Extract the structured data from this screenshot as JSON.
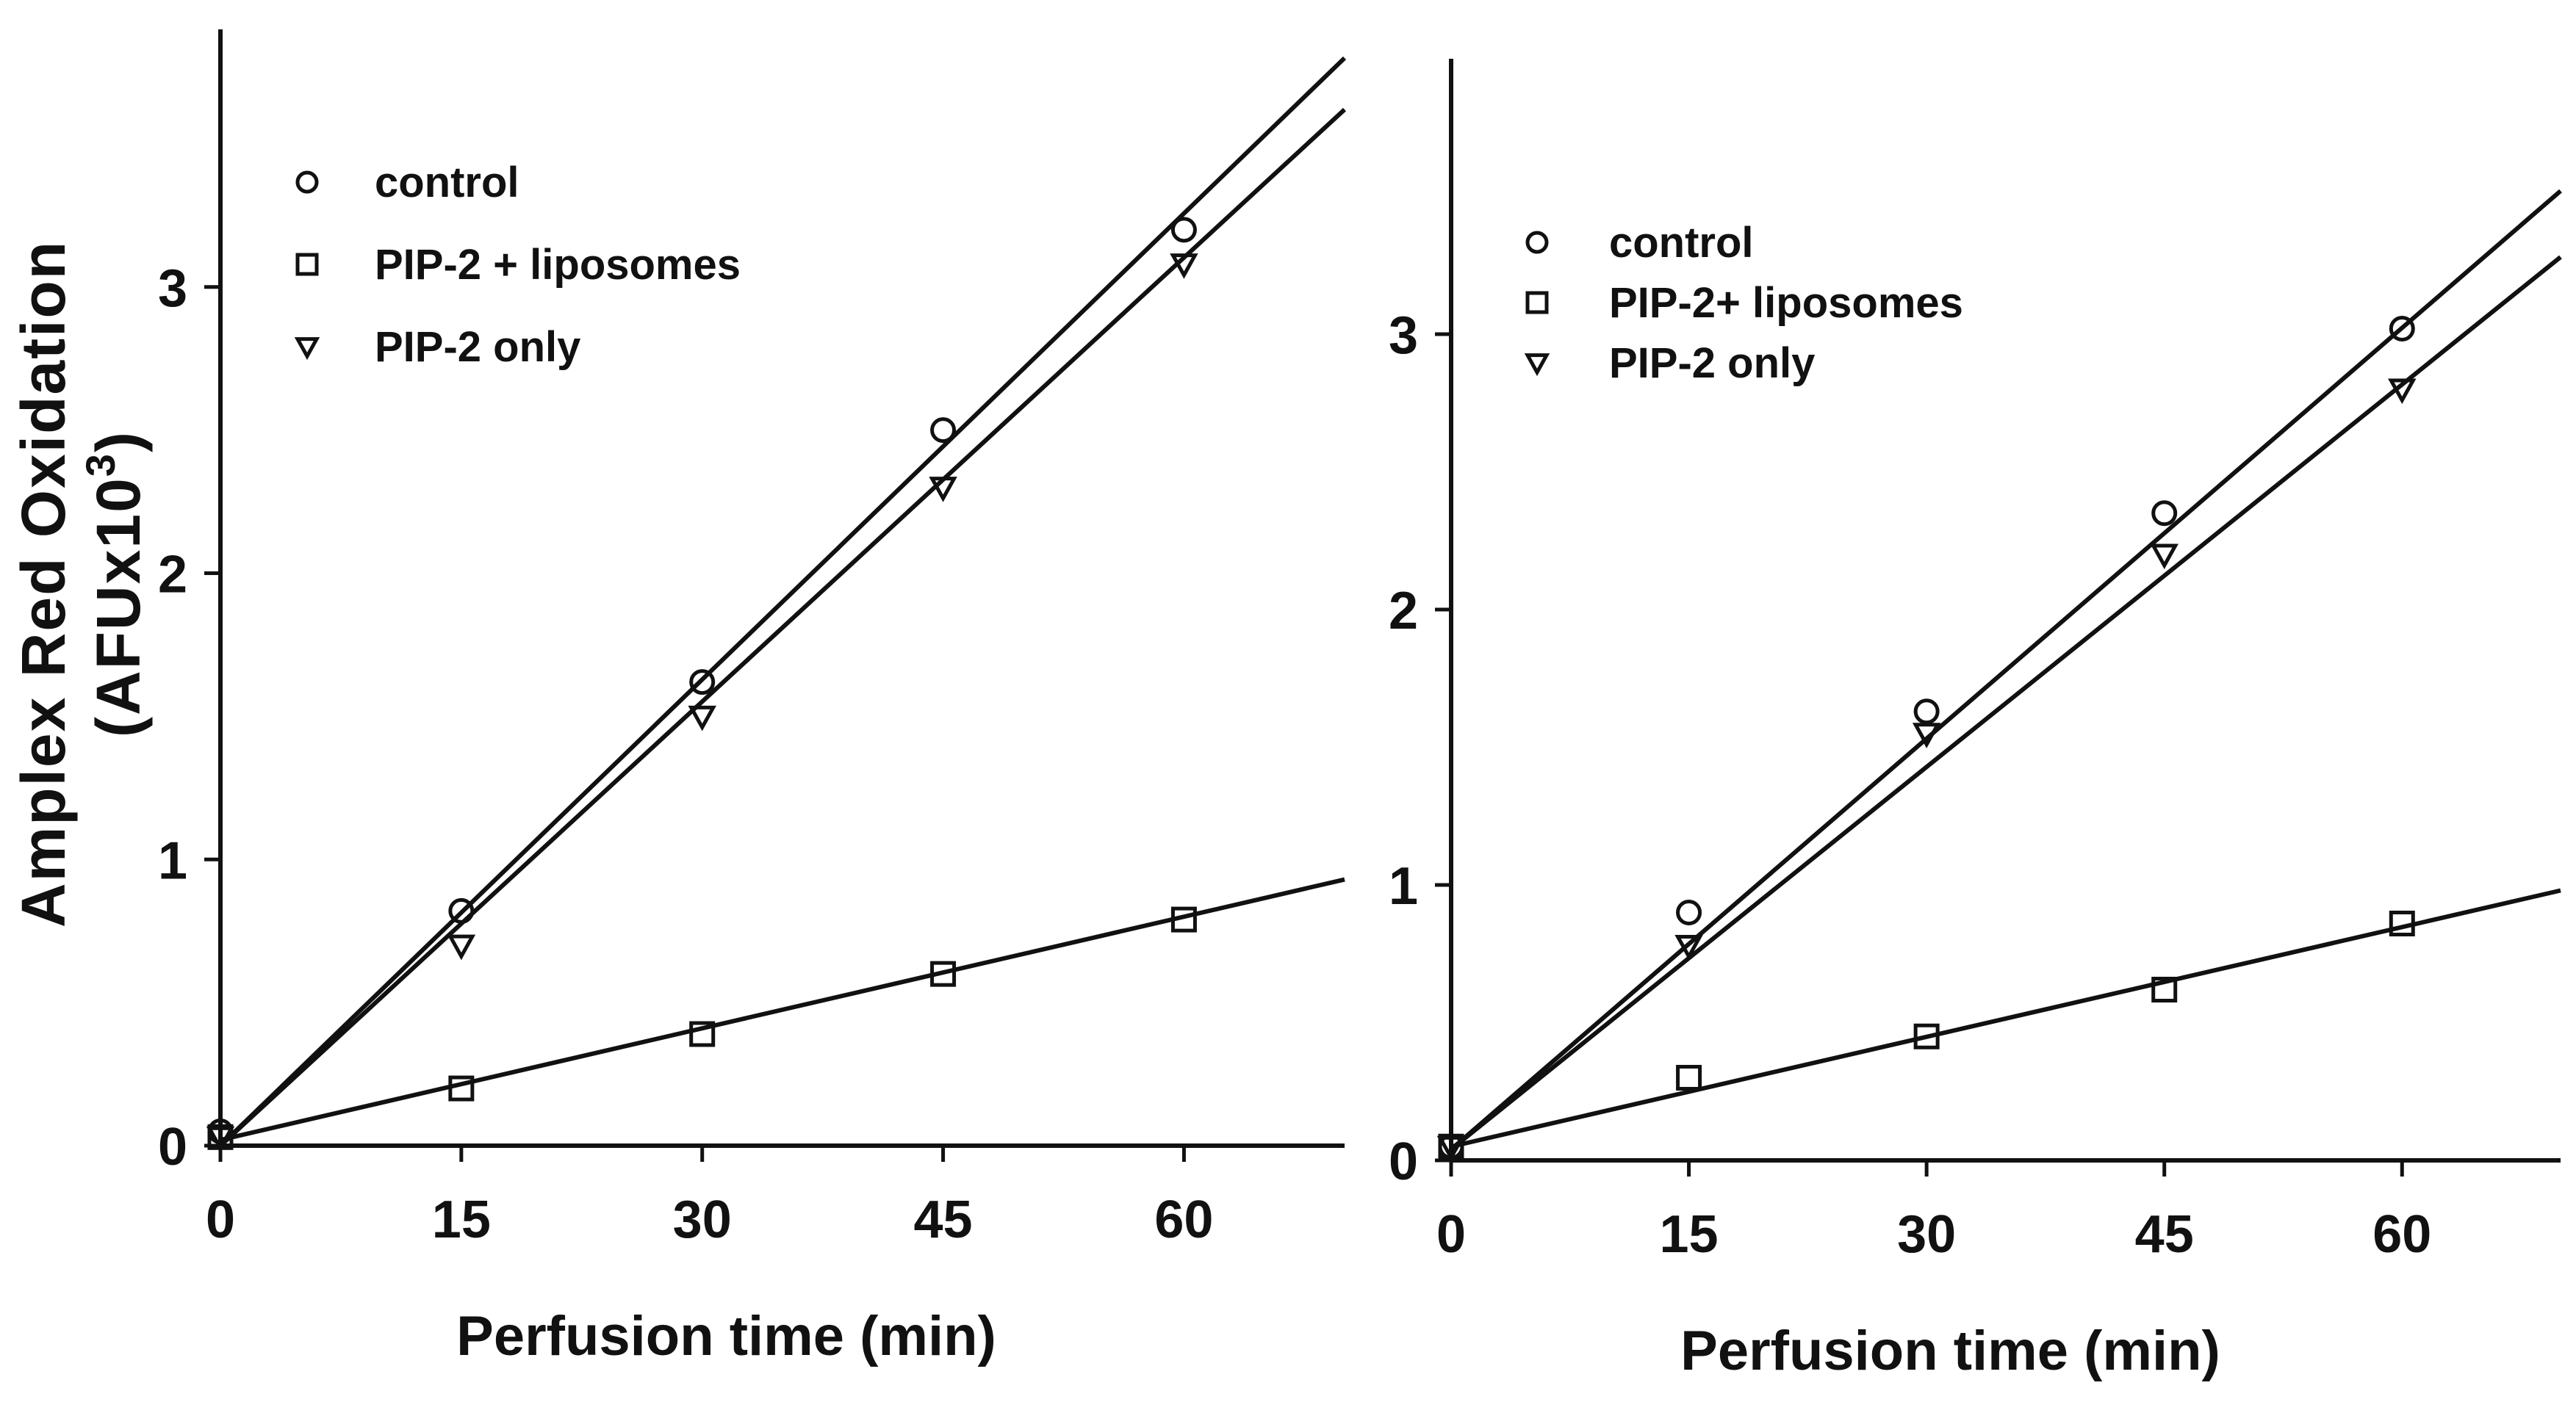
{
  "figure": {
    "ylabel_line1": "Amplex Red Oxidation",
    "ylabel_line2_prefix": "(AFUx10",
    "ylabel_line2_sup": "3",
    "ylabel_line2_suffix": ")"
  },
  "chart_data": [
    {
      "type": "scatter",
      "panel": "left",
      "title": "",
      "xlabel": "Perfusion time (min)",
      "ylabel": "Amplex Red Oxidation (AFUx10^3)",
      "xlim": [
        0,
        70
      ],
      "ylim": [
        0,
        3.9
      ],
      "x_ticks": [
        0,
        15,
        30,
        45,
        60
      ],
      "y_ticks": [
        0,
        1,
        2,
        3
      ],
      "legend_position": "top-left",
      "series": [
        {
          "name": "control",
          "marker": "circle",
          "x": [
            0,
            15,
            30,
            45,
            60
          ],
          "y": [
            0.05,
            0.82,
            1.62,
            2.5,
            3.2
          ],
          "fit": {
            "y0": 0.0,
            "y_end": 3.8
          }
        },
        {
          "name": "PIP-2 + liposomes",
          "marker": "square",
          "x": [
            0,
            15,
            30,
            45,
            60
          ],
          "y": [
            0.03,
            0.2,
            0.39,
            0.6,
            0.79
          ],
          "fit": {
            "y0": 0.02,
            "y_end": 0.93
          }
        },
        {
          "name": "PIP-2 only",
          "marker": "triangle-down",
          "x": [
            0,
            15,
            30,
            45,
            60
          ],
          "y": [
            0.03,
            0.7,
            1.5,
            2.3,
            3.08
          ],
          "fit": {
            "y0": 0.0,
            "y_end": 3.62
          }
        }
      ]
    },
    {
      "type": "scatter",
      "panel": "right",
      "title": "",
      "xlabel": "Perfusion time (min)",
      "ylabel": "",
      "xlim": [
        0,
        70
      ],
      "ylim": [
        0,
        4.0
      ],
      "x_ticks": [
        0,
        15,
        30,
        45,
        60
      ],
      "y_ticks": [
        0,
        1,
        2,
        3
      ],
      "legend_position": "top-left",
      "series": [
        {
          "name": "control",
          "marker": "circle",
          "x": [
            0,
            15,
            30,
            45,
            60
          ],
          "y": [
            0.05,
            0.9,
            1.63,
            2.35,
            3.02
          ],
          "fit": {
            "y0": 0.04,
            "y_end": 3.52
          }
        },
        {
          "name": "PIP-2+ liposomes",
          "marker": "square",
          "x": [
            0,
            15,
            30,
            45,
            60
          ],
          "y": [
            0.05,
            0.3,
            0.45,
            0.62,
            0.86
          ],
          "fit": {
            "y0": 0.05,
            "y_end": 0.98
          }
        },
        {
          "name": "PIP-2 only",
          "marker": "triangle-down",
          "x": [
            0,
            15,
            30,
            45,
            60
          ],
          "y": [
            0.05,
            0.78,
            1.55,
            2.2,
            2.8
          ],
          "fit": {
            "y0": 0.04,
            "y_end": 3.28
          }
        }
      ]
    }
  ]
}
